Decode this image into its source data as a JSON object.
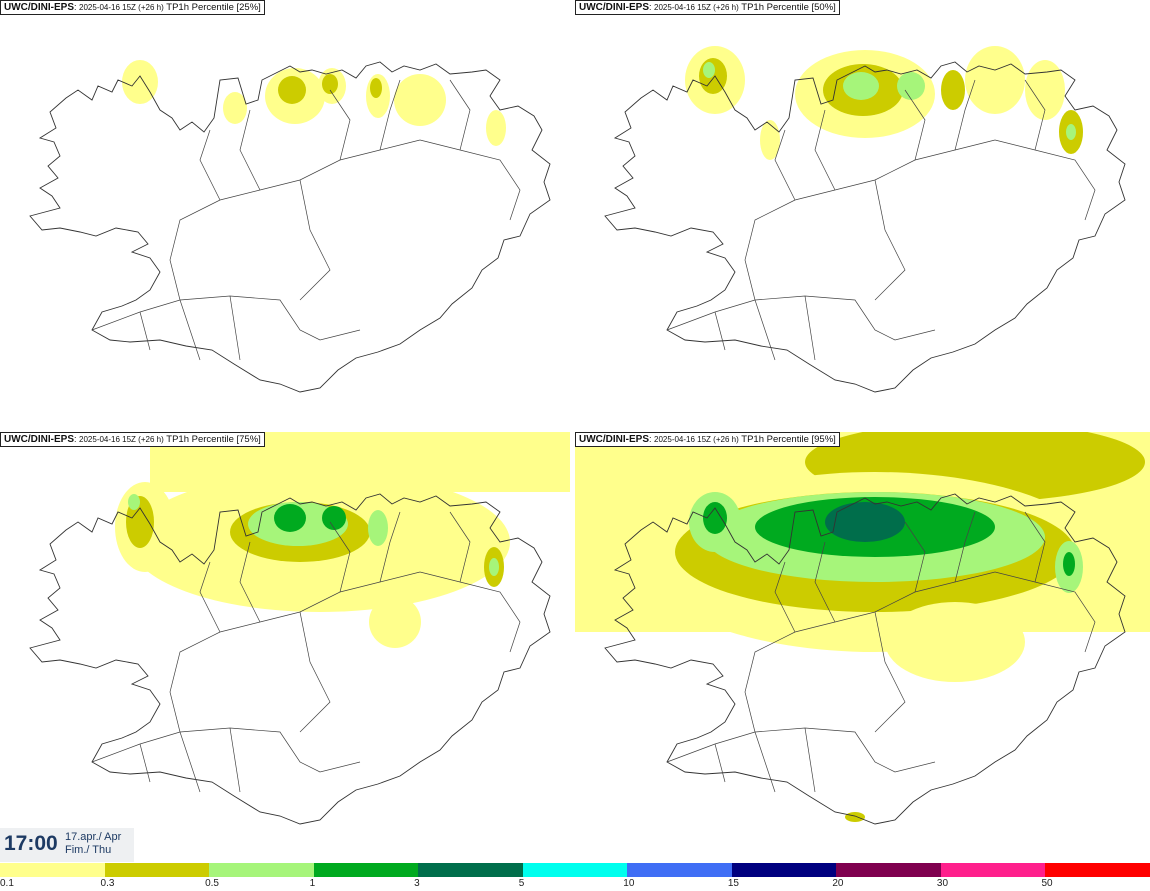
{
  "panels": [
    {
      "source": "UWC/DINI-EPS",
      "run": "2025-04-16 15Z (+26 h)",
      "variable": "TP1h Percentile [25%]"
    },
    {
      "source": "UWC/DINI-EPS",
      "run": "2025-04-16 15Z (+26 h)",
      "variable": "TP1h Percentile [50%]"
    },
    {
      "source": "UWC/DINI-EPS",
      "run": "2025-04-16 15Z (+26 h)",
      "variable": "TP1h Percentile [75%]"
    },
    {
      "source": "UWC/DINI-EPS",
      "run": "2025-04-16 15Z (+26 h)",
      "variable": "TP1h Percentile [95%]"
    }
  ],
  "time": {
    "clock": "17:00",
    "date_line": "17.apr./ Apr",
    "day_line": "Fim./ Thu"
  },
  "legend": {
    "labels": [
      "0.1",
      "0.3",
      "0.5",
      "1",
      "3",
      "5",
      "10",
      "15",
      "20",
      "30",
      "50"
    ],
    "colors": [
      "#ffff8c",
      "#cccc00",
      "#a6f57a",
      "#00aa1f",
      "#006e4b",
      "#00ffee",
      "#3f6ef5",
      "#00007f",
      "#7f004f",
      "#ff1f8c",
      "#ff0000"
    ]
  }
}
